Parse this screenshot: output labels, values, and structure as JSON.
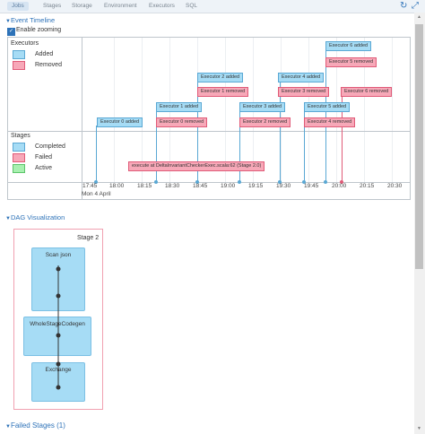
{
  "tabs": [
    "Jobs",
    "Stages",
    "Storage",
    "Environment",
    "Executors",
    "SQL"
  ],
  "top_icons": [
    "refresh-icon",
    "expand-icon"
  ],
  "event_timeline": {
    "title": "Event Timeline",
    "enable_zooming_label": "Enable zooming",
    "executors_group": "Executors",
    "executors_legend": [
      "Added",
      "Removed"
    ],
    "stages_group": "Stages",
    "stages_legend": [
      "Completed",
      "Failed",
      "Active"
    ],
    "events": [
      "Executor 6 added",
      "Executor 5 removed",
      "Executor 2 added",
      "Executor 4 added",
      "Executor 1 removed",
      "Executor 3 removed",
      "Executor 6 removed",
      "Executor 1 added",
      "Executor 3 added",
      "Executor 5 added",
      "Executor 0 added",
      "Executor 0 removed",
      "Executor 2 removed",
      "Executor 4 removed"
    ],
    "stage_event": "execute at DeltaInvariantCheckerExec.scala:62 (Stage 2.0)",
    "ticks": [
      "17:45",
      "18:00",
      "18:15",
      "18:30",
      "18:45",
      "19:00",
      "19:15",
      "19:30",
      "19:45",
      "20:00",
      "20:15",
      "20:30"
    ],
    "day_label": "Mon 4 April"
  },
  "dag": {
    "title": "DAG Visualization",
    "stage_label": "Stage 2",
    "nodes": [
      "Scan json",
      "WholeStageCodegen",
      "Exchange"
    ]
  },
  "failed_stages": "Failed Stages (1)",
  "colors": {
    "added": "#a6dcf5",
    "removed": "#f7a8b8",
    "active": "#a8f0b0",
    "link": "#2d72b8"
  }
}
